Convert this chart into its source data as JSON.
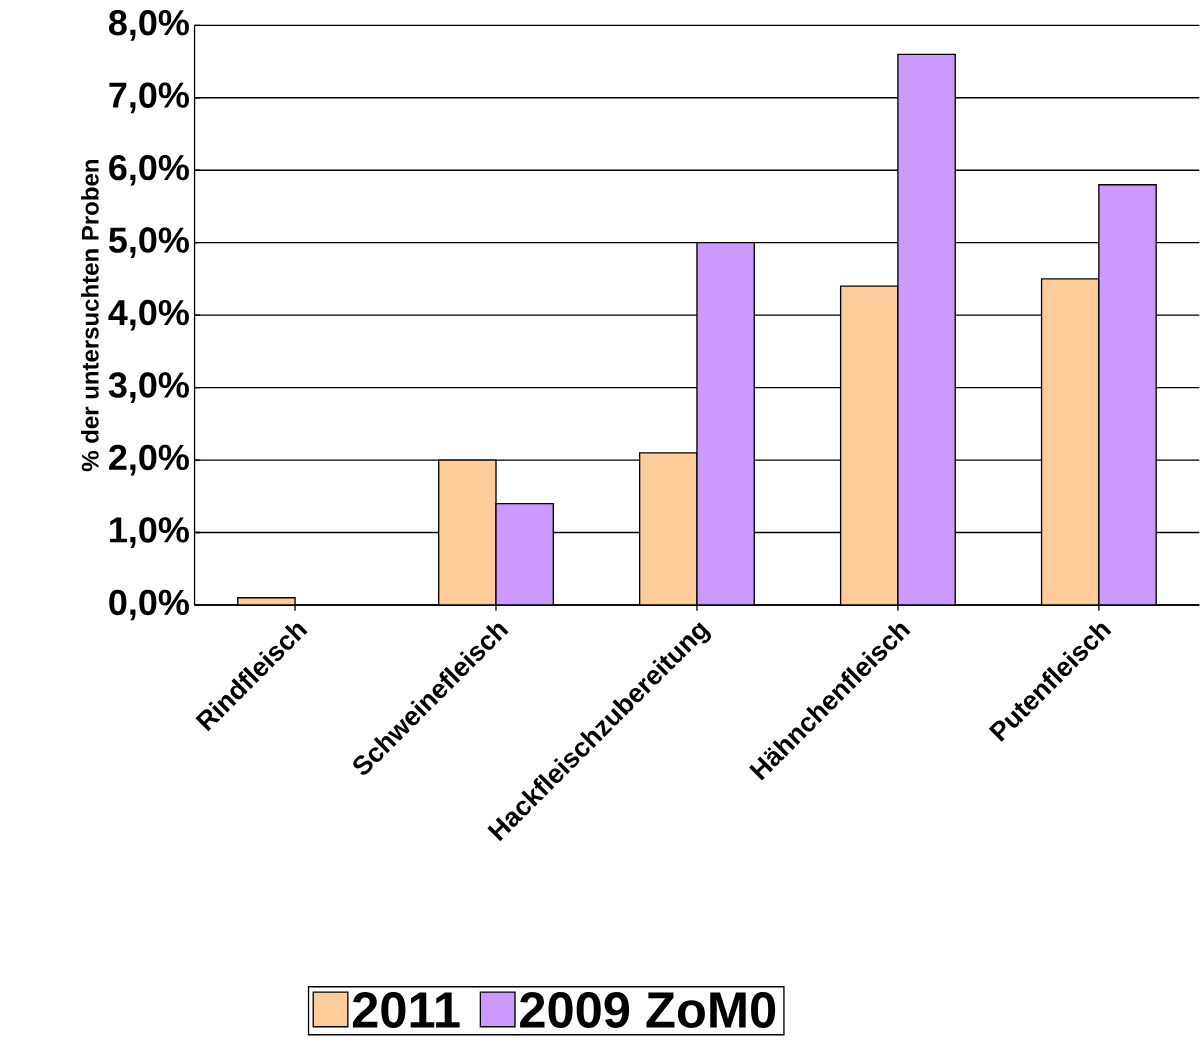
{
  "chart_data": {
    "type": "bar",
    "ylabel": "% der untersuchten Proben",
    "categories": [
      "Rindfleisch",
      "Schweinefleisch",
      "Hackfleischzubereitung",
      "Hähnchenfleisch",
      "Putenfleisch"
    ],
    "series": [
      {
        "name": "2011",
        "color": "#ffcc99",
        "values": [
          0.1,
          2.0,
          2.1,
          4.4,
          4.5
        ]
      },
      {
        "name": "2009 ZoM0",
        "color": "#cc99ff",
        "values": [
          null,
          1.4,
          5.0,
          7.6,
          5.8
        ]
      }
    ],
    "ylim": [
      0,
      8
    ],
    "yticks": [
      {
        "value": 0,
        "label": "0,0%"
      },
      {
        "value": 1,
        "label": "1,0%"
      },
      {
        "value": 2,
        "label": "2,0%"
      },
      {
        "value": 3,
        "label": "3,0%"
      },
      {
        "value": 4,
        "label": "4,0%"
      },
      {
        "value": 5,
        "label": "5,0%"
      },
      {
        "value": 6,
        "label": "6,0%"
      },
      {
        "value": 7,
        "label": "7,0%"
      },
      {
        "value": 8,
        "label": "8,0%"
      }
    ],
    "grid": "y",
    "legend": "bottom"
  }
}
